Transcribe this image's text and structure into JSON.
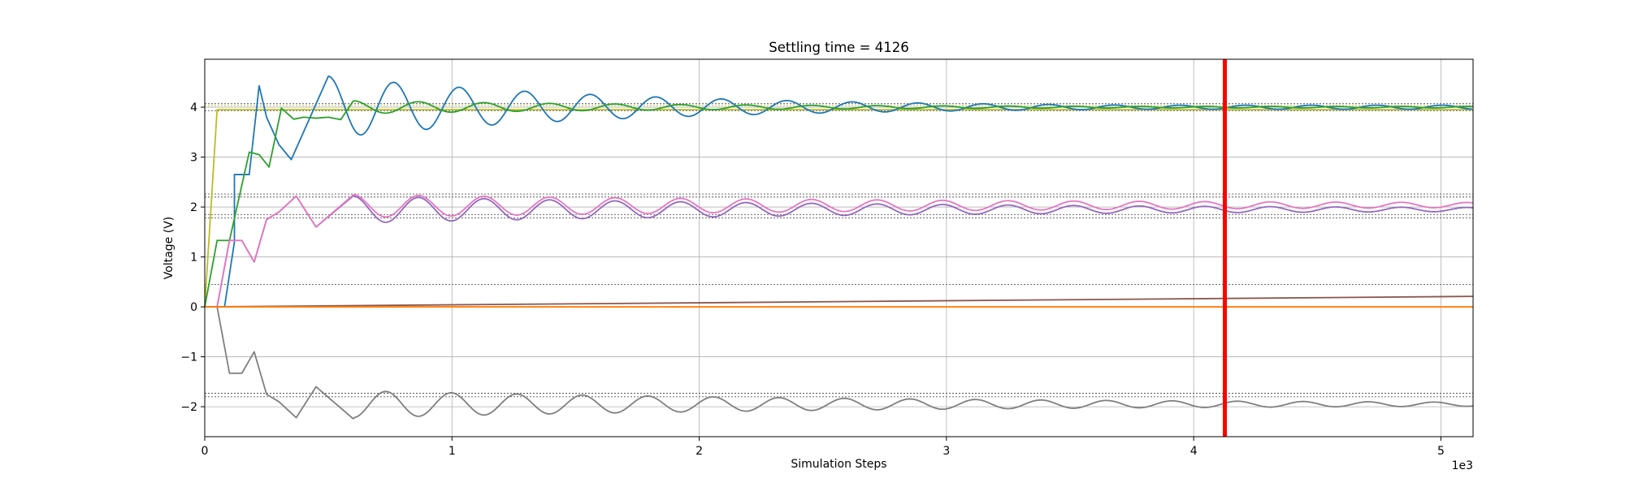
{
  "chart_data": {
    "type": "line",
    "title": "Settling time = 4126",
    "xlabel": "Simulation Steps",
    "ylabel": "Voltage (V)",
    "x_multiplier_label": "1e3",
    "xlim": [
      0,
      5.13
    ],
    "ylim": [
      -2.6,
      4.96
    ],
    "xticks": [
      0,
      1,
      2,
      3,
      4,
      5
    ],
    "xtick_labels": [
      "0",
      "1",
      "2",
      "3",
      "4",
      "5"
    ],
    "yticks": [
      -2,
      -1,
      0,
      1,
      2,
      3,
      4
    ],
    "ytick_labels": [
      "−2",
      "−1",
      "0",
      "1",
      "2",
      "3",
      "4"
    ],
    "grid": true,
    "settling_marker": {
      "x": 4.126,
      "color": "#ff0000"
    },
    "reference_lines": [
      {
        "y": 4.07,
        "color": "#555555"
      },
      {
        "y": 4.03,
        "color": "#bcbd22"
      },
      {
        "y": 3.93,
        "color": "#555555"
      },
      {
        "y": 2.26,
        "color": "#555555"
      },
      {
        "y": 2.2,
        "color": "#555555"
      },
      {
        "y": 1.85,
        "color": "#555555"
      },
      {
        "y": 1.78,
        "color": "#555555"
      },
      {
        "y": 0.45,
        "color": "#555555"
      },
      {
        "y": -1.73,
        "color": "#555555"
      },
      {
        "y": -1.8,
        "color": "#555555"
      }
    ],
    "series": [
      {
        "color": "#bcbd22",
        "kind": "olive",
        "points": [
          [
            0,
            0
          ],
          [
            0.05,
            3.95
          ],
          [
            5.13,
            3.95
          ]
        ]
      },
      {
        "color": "#1f77b4",
        "kind": "osc",
        "points": [
          [
            0,
            0
          ],
          [
            0.08,
            0
          ],
          [
            0.12,
            1.3
          ],
          [
            0.12,
            2.65
          ],
          [
            0.18,
            2.65
          ],
          [
            0.22,
            4.43
          ],
          [
            0.25,
            3.8
          ],
          [
            0.3,
            3.25
          ],
          [
            0.35,
            2.95
          ],
          [
            0.5,
            4.62
          ]
        ],
        "osc": {
          "x0": 0.5,
          "x1": 5.13,
          "center": 4.0,
          "amp0": 0.62,
          "tau": 1.2,
          "ampMin": 0.04,
          "period": 0.265,
          "phase": 0.5
        }
      },
      {
        "color": "#2ca02c",
        "kind": "osc",
        "points": [
          [
            0,
            0
          ],
          [
            0.05,
            1.33
          ],
          [
            0.1,
            1.33
          ],
          [
            0.18,
            3.1
          ],
          [
            0.22,
            3.05
          ],
          [
            0.26,
            2.8
          ],
          [
            0.31,
            3.98
          ],
          [
            0.36,
            3.76
          ],
          [
            0.4,
            3.8
          ],
          [
            0.45,
            3.78
          ],
          [
            0.5,
            3.8
          ],
          [
            0.55,
            3.75
          ],
          [
            0.6,
            4.12
          ]
        ],
        "osc": {
          "x0": 0.6,
          "x1": 5.13,
          "center": 4.0,
          "amp0": 0.13,
          "tau": 1.5,
          "ampMin": 0.015,
          "period": 0.265,
          "phase": 0.6
        }
      },
      {
        "color": "#9467bd",
        "kind": "osc",
        "points": [
          [
            0,
            0
          ],
          [
            0.05,
            0
          ],
          [
            0.1,
            1.33
          ],
          [
            0.15,
            1.33
          ],
          [
            0.2,
            0.9
          ],
          [
            0.25,
            1.75
          ],
          [
            0.3,
            1.9
          ],
          [
            0.37,
            2.22
          ],
          [
            0.45,
            1.6
          ],
          [
            0.6,
            2.22
          ]
        ],
        "osc": {
          "x0": 0.6,
          "x1": 5.13,
          "center": 1.95,
          "amp0": 0.27,
          "tau": 2.4,
          "ampMin": 0.04,
          "period": 0.265,
          "phase": 0.6
        }
      },
      {
        "color": "#e377c2",
        "kind": "osc",
        "points": [
          [
            0,
            0
          ],
          [
            0.05,
            0
          ],
          [
            0.1,
            1.33
          ],
          [
            0.15,
            1.33
          ],
          [
            0.2,
            0.9
          ],
          [
            0.25,
            1.75
          ],
          [
            0.3,
            1.9
          ],
          [
            0.37,
            2.22
          ],
          [
            0.45,
            1.6
          ],
          [
            0.6,
            2.24
          ]
        ],
        "osc": {
          "x0": 0.6,
          "x1": 5.13,
          "center": 2.02,
          "amp0": 0.23,
          "tau": 3.0,
          "ampMin": 0.03,
          "period": 0.265,
          "phase": 0.6,
          "drift": 0.02
        }
      },
      {
        "color": "#7f7f7f",
        "kind": "osc",
        "points": [
          [
            0,
            0
          ],
          [
            0.05,
            0
          ],
          [
            0.1,
            -1.33
          ],
          [
            0.15,
            -1.33
          ],
          [
            0.2,
            -0.9
          ],
          [
            0.25,
            -1.75
          ],
          [
            0.3,
            -1.9
          ],
          [
            0.37,
            -2.22
          ],
          [
            0.45,
            -1.6
          ],
          [
            0.6,
            -2.24
          ]
        ],
        "osc": {
          "x0": 0.6,
          "x1": 5.13,
          "center": -1.95,
          "amp0": 0.27,
          "tau": 2.4,
          "ampMin": 0.04,
          "period": 0.265,
          "phase": 0.6,
          "invert": true
        }
      },
      {
        "color": "#8c564b",
        "kind": "line",
        "points": [
          [
            0,
            0
          ],
          [
            5.13,
            0.21
          ]
        ]
      },
      {
        "color": "#ff7f0e",
        "kind": "line",
        "points": [
          [
            0,
            0
          ],
          [
            5.13,
            0
          ]
        ]
      }
    ]
  }
}
